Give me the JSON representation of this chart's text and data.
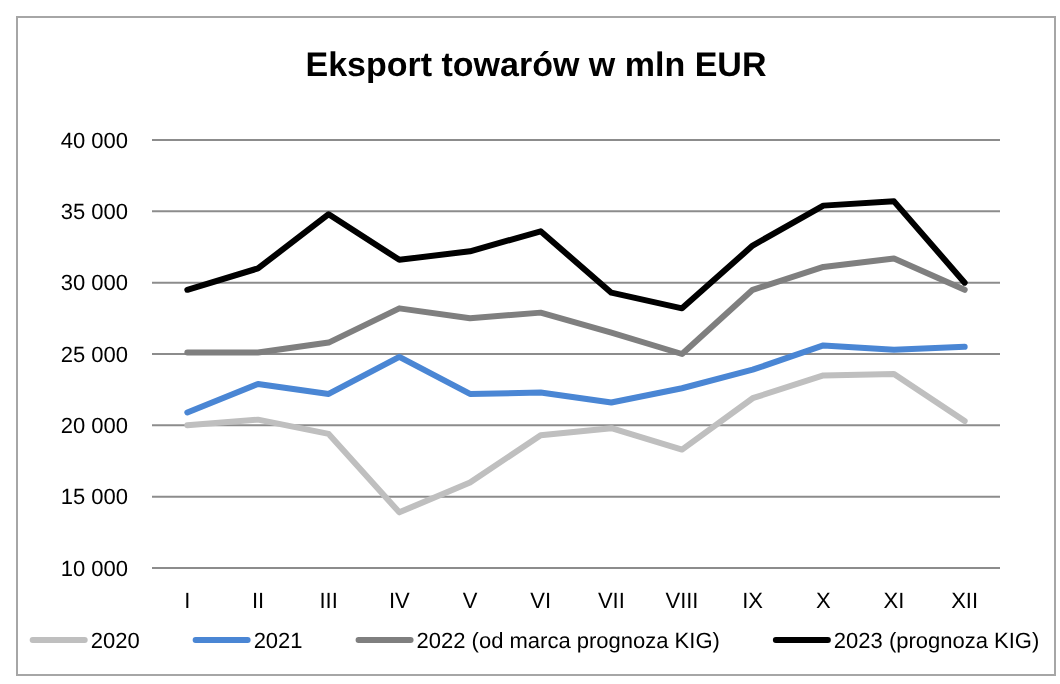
{
  "chart_data": {
    "type": "line",
    "title": "Eksport towarów w mln EUR",
    "categories": [
      "I",
      "II",
      "III",
      "IV",
      "V",
      "VI",
      "VII",
      "VIII",
      "IX",
      "X",
      "XI",
      "XII"
    ],
    "series": [
      {
        "name": "2020",
        "color": "#bfbfbf",
        "values": [
          20000,
          20400,
          19400,
          13900,
          16000,
          19300,
          19800,
          18300,
          21900,
          23500,
          23600,
          20300
        ]
      },
      {
        "name": "2021",
        "color": "#4a86d4",
        "values": [
          20900,
          22900,
          22200,
          24800,
          22200,
          22300,
          21600,
          22600,
          23900,
          25600,
          25300,
          25500
        ]
      },
      {
        "name": "2022 (od marca prognoza KIG)",
        "color": "#7f7f7f",
        "values": [
          25100,
          25100,
          25800,
          28200,
          27500,
          27900,
          26500,
          25000,
          29500,
          31100,
          31700,
          29500
        ]
      },
      {
        "name": "2023 (prognoza KIG)",
        "color": "#000000",
        "values": [
          29500,
          31000,
          34800,
          31600,
          32200,
          33600,
          29300,
          28200,
          32600,
          35400,
          35700,
          30000
        ]
      }
    ],
    "ylim": [
      10000,
      40000
    ],
    "yticks": [
      {
        "value": 10000,
        "label": "10 000"
      },
      {
        "value": 15000,
        "label": "15 000"
      },
      {
        "value": 20000,
        "label": "20 000"
      },
      {
        "value": 25000,
        "label": "25 000"
      },
      {
        "value": 30000,
        "label": "30 000"
      },
      {
        "value": 35000,
        "label": "35 000"
      },
      {
        "value": 40000,
        "label": "40 000"
      }
    ],
    "grid": "y",
    "legend": "bottom",
    "marker": "none",
    "line_style": "solid"
  }
}
